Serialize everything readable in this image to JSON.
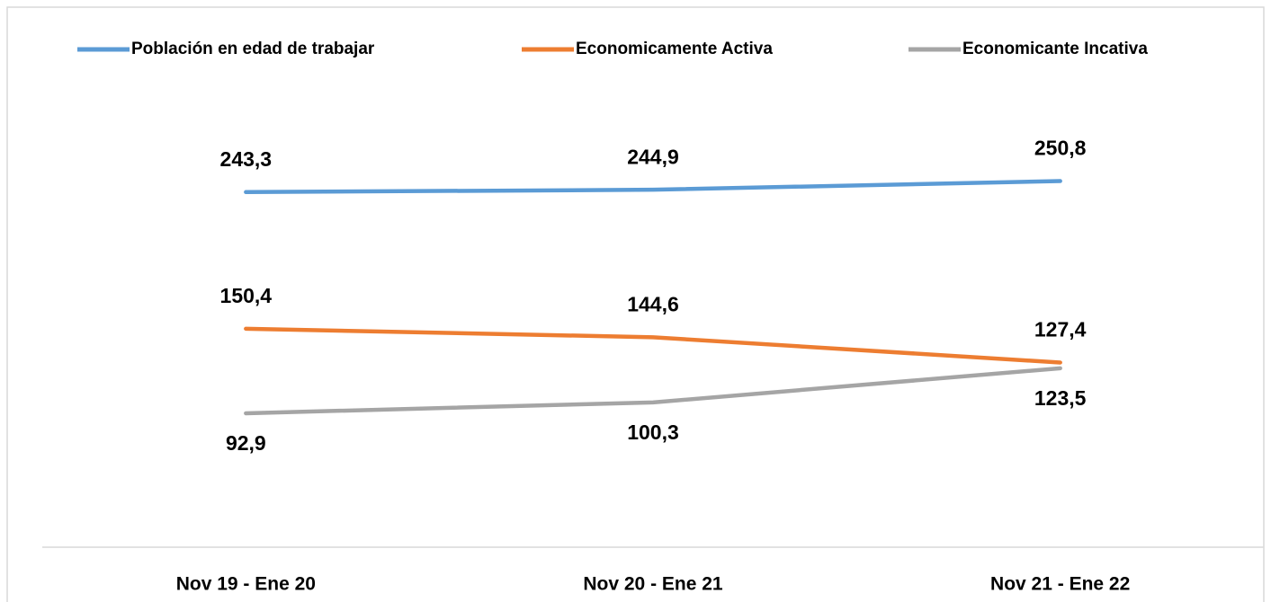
{
  "chart_data": {
    "type": "line",
    "categories": [
      "Nov 19 - Ene 20",
      "Nov 20 - Ene 21",
      "Nov 21 - Ene 22"
    ],
    "series": [
      {
        "name": "Población en edad de trabajar",
        "color": "#5b9bd5",
        "values": [
          243.3,
          244.9,
          250.8
        ],
        "value_labels": [
          "243,3",
          "244,9",
          "250,8"
        ]
      },
      {
        "name": "Economicamente Activa",
        "color": "#ed7d31",
        "values": [
          150.4,
          144.6,
          127.4
        ],
        "value_labels": [
          "150,4",
          "144,6",
          "127,4"
        ]
      },
      {
        "name": "Economicante Incativa",
        "color": "#a5a5a5",
        "values": [
          92.9,
          100.3,
          123.5
        ],
        "value_labels": [
          "92,9",
          "100,3",
          "123,5"
        ]
      }
    ],
    "ylim": [
      0,
      300
    ],
    "legend": "top"
  }
}
